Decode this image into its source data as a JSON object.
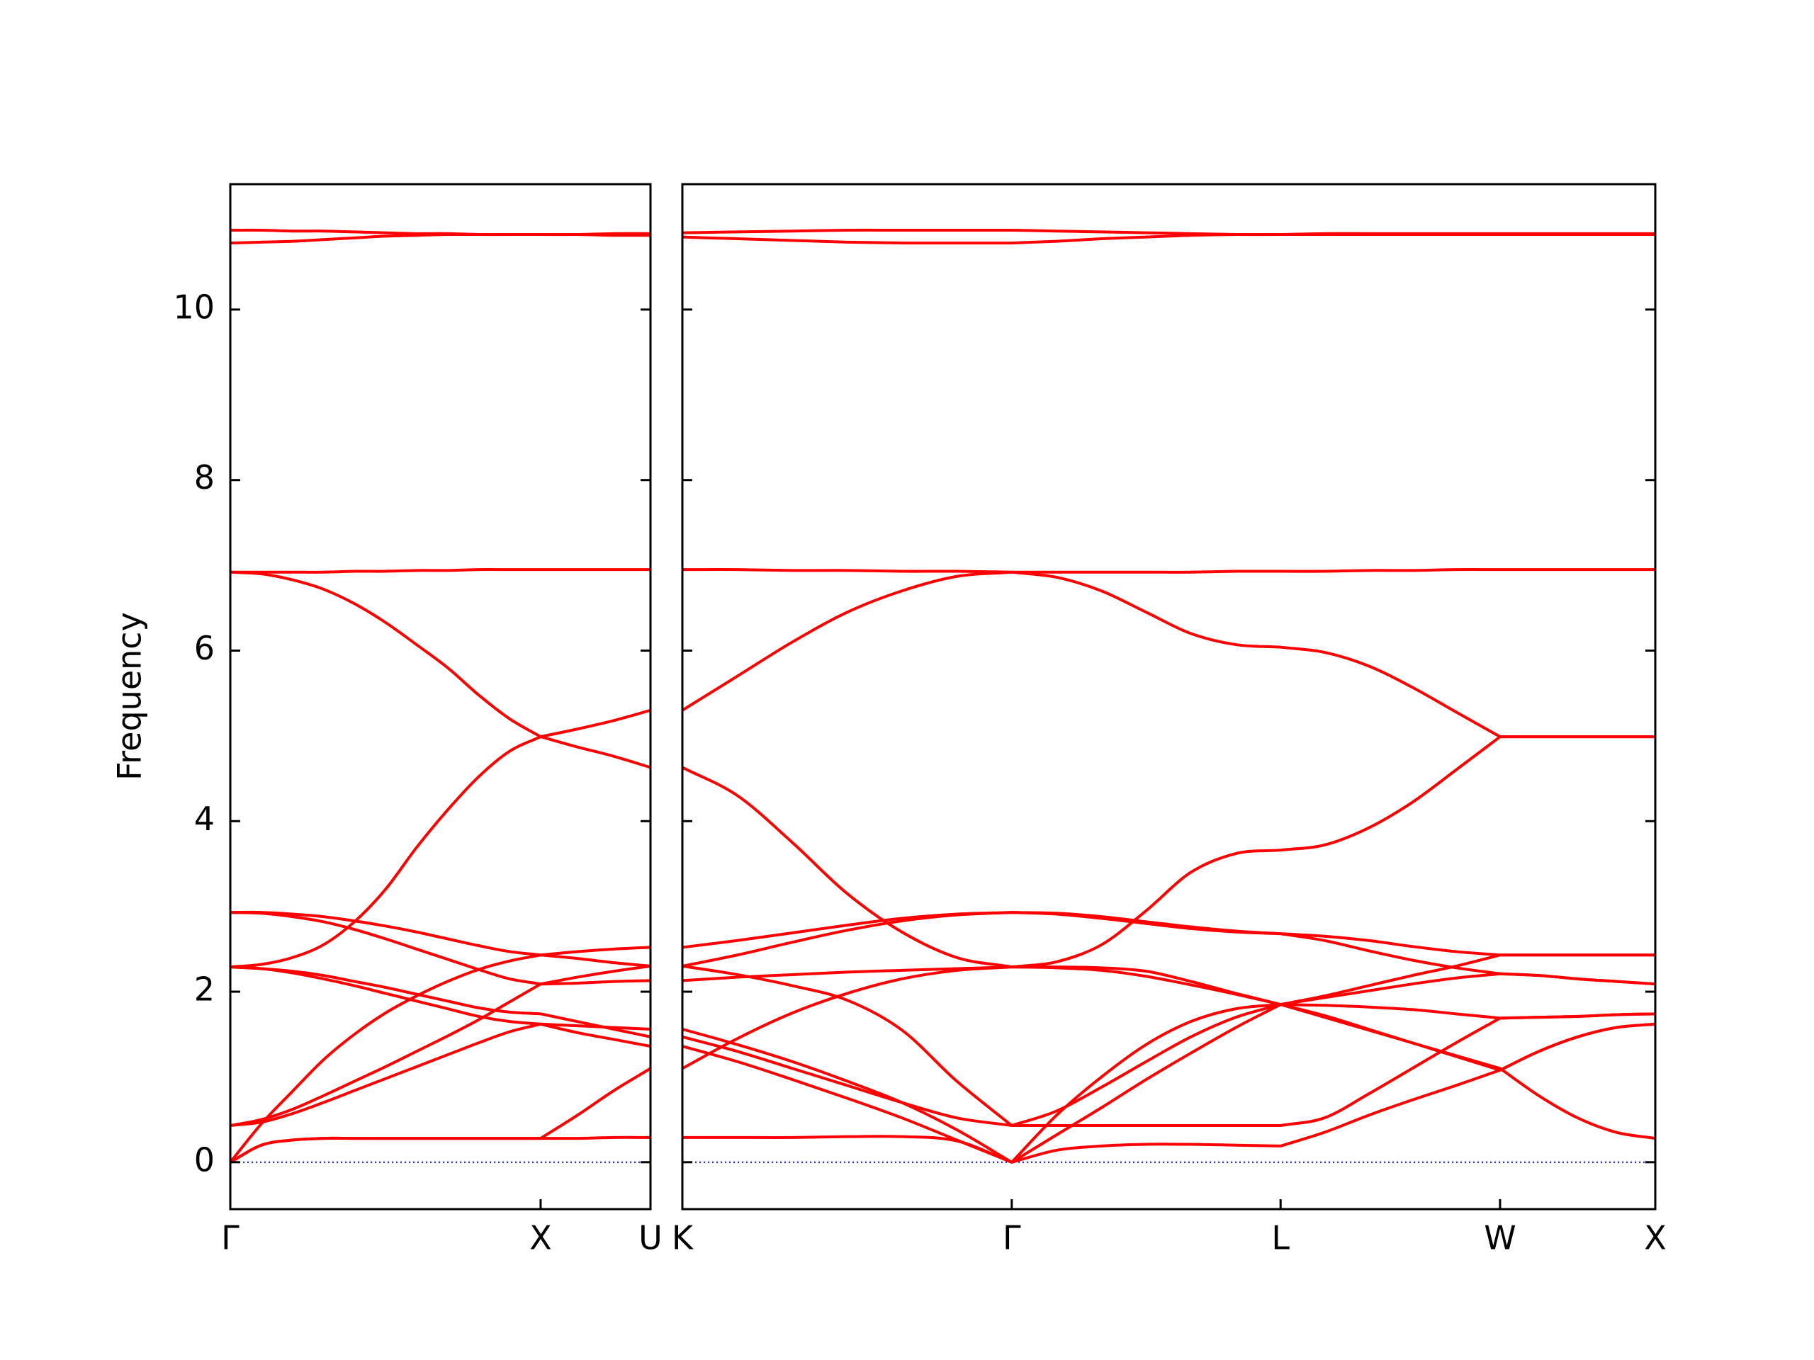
{
  "chart_data": [
    {
      "type": "line",
      "ylabel": "Frequency",
      "color": "#ff0000",
      "xlim": [
        0,
        1.354
      ],
      "ylim": [
        -0.55,
        11.47
      ],
      "xticks": [
        {
          "value": 0,
          "label": "Γ"
        },
        {
          "value": 1,
          "label": "X"
        },
        {
          "value": 1.354,
          "label": "U"
        }
      ],
      "yticks": [
        0,
        2,
        4,
        6,
        8,
        10
      ],
      "hline": {
        "value": 0,
        "color": "#0000cc",
        "style": "dotted"
      },
      "x": [
        0,
        0.1,
        0.2,
        0.3,
        0.4,
        0.5,
        0.6,
        0.7,
        0.8,
        0.9,
        1,
        1.118,
        1.236,
        1.354
      ],
      "series": [
        {
          "values": [
            0,
            0.2,
            0.26,
            0.28,
            0.28,
            0.28,
            0.28,
            0.28,
            0.28,
            0.28,
            0.28,
            0.28,
            0.29,
            0.29
          ]
        },
        {
          "values": [
            0,
            0.2,
            0.26,
            0.28,
            0.28,
            0.28,
            0.28,
            0.28,
            0.28,
            0.28,
            0.28,
            0.55,
            0.84,
            1.1
          ]
        },
        {
          "values": [
            0,
            0.45,
            0.83,
            1.2,
            1.5,
            1.75,
            1.95,
            2.12,
            2.26,
            2.36,
            2.43,
            2.47,
            2.5,
            2.52
          ]
        },
        {
          "values": [
            0.43,
            0.5,
            0.62,
            0.78,
            0.95,
            1.12,
            1.3,
            1.48,
            1.67,
            1.88,
            2.09,
            2.17,
            2.24,
            2.3
          ]
        },
        {
          "values": [
            0.43,
            0.47,
            0.57,
            0.7,
            0.84,
            0.98,
            1.12,
            1.26,
            1.4,
            1.53,
            1.62,
            1.6,
            1.58,
            1.56
          ]
        },
        {
          "values": [
            2.29,
            2.27,
            2.22,
            2.15,
            2.07,
            1.98,
            1.89,
            1.8,
            1.71,
            1.65,
            1.62,
            1.52,
            1.44,
            1.36
          ]
        },
        {
          "values": [
            2.29,
            2.27,
            2.24,
            2.19,
            2.12,
            2.05,
            1.97,
            1.89,
            1.81,
            1.76,
            1.74,
            1.65,
            1.56,
            1.47
          ]
        },
        {
          "values": [
            2.29,
            2.32,
            2.4,
            2.55,
            2.82,
            3.2,
            3.69,
            4.13,
            4.52,
            4.82,
            4.99,
            5.08,
            5.18,
            5.3
          ]
        },
        {
          "values": [
            2.93,
            2.93,
            2.91,
            2.88,
            2.83,
            2.77,
            2.7,
            2.62,
            2.54,
            2.47,
            2.43,
            2.39,
            2.34,
            2.3
          ]
        },
        {
          "values": [
            2.93,
            2.92,
            2.88,
            2.82,
            2.73,
            2.62,
            2.5,
            2.38,
            2.26,
            2.15,
            2.09,
            2.1,
            2.12,
            2.13
          ]
        },
        {
          "values": [
            6.92,
            6.92,
            6.92,
            6.92,
            6.93,
            6.93,
            6.94,
            6.94,
            6.95,
            6.95,
            6.95,
            6.95,
            6.95,
            6.95
          ]
        },
        {
          "values": [
            6.92,
            6.9,
            6.83,
            6.72,
            6.55,
            6.33,
            6.07,
            5.8,
            5.48,
            5.2,
            4.99,
            4.87,
            4.76,
            4.63
          ]
        },
        {
          "values": [
            10.78,
            10.79,
            10.8,
            10.82,
            10.84,
            10.86,
            10.87,
            10.88,
            10.88,
            10.88,
            10.88,
            10.88,
            10.87,
            10.87
          ]
        },
        {
          "values": [
            10.93,
            10.93,
            10.92,
            10.92,
            10.91,
            10.9,
            10.89,
            10.89,
            10.88,
            10.88,
            10.88,
            10.88,
            10.89,
            10.89
          ]
        }
      ]
    },
    {
      "type": "line",
      "color": "#ff0000",
      "xlim": [
        0,
        3.134
      ],
      "ylim": [
        -0.55,
        11.47
      ],
      "xticks": [
        {
          "value": 0,
          "label": "K"
        },
        {
          "value": 1.061,
          "label": "Γ"
        },
        {
          "value": 1.927,
          "label": "L"
        },
        {
          "value": 2.634,
          "label": "W"
        },
        {
          "value": 3.134,
          "label": "X"
        }
      ],
      "hline": {
        "value": 0,
        "color": "#0000cc",
        "style": "dotted"
      },
      "x": [
        0,
        0.177,
        0.354,
        0.531,
        0.707,
        0.884,
        1.061,
        1.205,
        1.35,
        1.494,
        1.638,
        1.783,
        1.927,
        2.068,
        2.21,
        2.351,
        2.492,
        2.634,
        2.759,
        2.884,
        3.009,
        3.134
      ],
      "series": [
        {
          "values": [
            0.29,
            0.29,
            0.29,
            0.3,
            0.3,
            0.25,
            0,
            0.14,
            0.19,
            0.21,
            0.21,
            0.2,
            0.19,
            0.35,
            0.55,
            0.73,
            0.9,
            1.08,
            1.3,
            1.47,
            1.58,
            1.62
          ]
        },
        {
          "values": [
            1.1,
            1.45,
            1.75,
            1.98,
            2.15,
            2.25,
            2.29,
            2.28,
            2.25,
            2.18,
            2.08,
            1.97,
            1.85,
            1.93,
            2.01,
            2.09,
            2.16,
            2.21,
            2.19,
            2.15,
            2.12,
            2.09
          ]
        },
        {
          "values": [
            2.52,
            2.6,
            2.69,
            2.78,
            2.86,
            2.91,
            2.93,
            2.92,
            2.88,
            2.82,
            2.76,
            2.71,
            2.68,
            2.65,
            2.6,
            2.53,
            2.47,
            2.43,
            2.43,
            2.43,
            2.43,
            2.43
          ]
        },
        {
          "values": [
            2.3,
            2.43,
            2.58,
            2.72,
            2.83,
            2.9,
            2.93,
            2.91,
            2.86,
            2.8,
            2.74,
            2.7,
            2.68,
            2.6,
            2.48,
            2.37,
            2.28,
            2.21,
            2.19,
            2.15,
            2.12,
            2.09
          ]
        },
        {
          "values": [
            1.56,
            1.38,
            1.18,
            0.95,
            0.7,
            0.38,
            0,
            0.55,
            1.0,
            1.38,
            1.65,
            1.8,
            1.85,
            1.72,
            1.56,
            1.4,
            1.24,
            1.08,
            1.3,
            1.47,
            1.58,
            1.62
          ]
        },
        {
          "values": [
            1.36,
            1.18,
            0.97,
            0.75,
            0.52,
            0.26,
            0,
            0.32,
            0.64,
            0.97,
            1.28,
            1.58,
            1.85,
            1.7,
            1.55,
            1.4,
            1.25,
            1.1,
            0.78,
            0.52,
            0.35,
            0.28
          ]
        },
        {
          "values": [
            1.47,
            1.3,
            1.1,
            0.9,
            0.7,
            0.52,
            0.43,
            0.43,
            0.43,
            0.43,
            0.43,
            0.43,
            0.43,
            0.52,
            0.8,
            1.1,
            1.4,
            1.69,
            1.7,
            1.71,
            1.73,
            1.74
          ]
        },
        {
          "values": [
            2.3,
            2.2,
            2.07,
            1.9,
            1.55,
            0.95,
            0.43,
            0.6,
            0.88,
            1.18,
            1.47,
            1.7,
            1.85,
            1.84,
            1.82,
            1.79,
            1.74,
            1.69,
            1.7,
            1.71,
            1.73,
            1.74
          ]
        },
        {
          "values": [
            2.13,
            2.17,
            2.2,
            2.23,
            2.25,
            2.27,
            2.29,
            2.29,
            2.28,
            2.24,
            2.12,
            1.98,
            1.85,
            1.95,
            2.07,
            2.19,
            2.3,
            2.43,
            2.43,
            2.43,
            2.43,
            2.43
          ]
        },
        {
          "values": [
            4.63,
            4.3,
            3.75,
            3.15,
            2.7,
            2.4,
            2.29,
            2.35,
            2.55,
            2.95,
            3.4,
            3.62,
            3.66,
            3.72,
            3.92,
            4.22,
            4.6,
            4.99,
            4.99,
            4.99,
            4.99,
            4.99
          ]
        },
        {
          "values": [
            5.3,
            5.7,
            6.1,
            6.45,
            6.7,
            6.87,
            6.92,
            6.86,
            6.7,
            6.45,
            6.2,
            6.07,
            6.04,
            5.98,
            5.82,
            5.57,
            5.28,
            4.99,
            4.99,
            4.99,
            4.99,
            4.99
          ]
        },
        {
          "values": [
            6.95,
            6.95,
            6.94,
            6.94,
            6.93,
            6.93,
            6.92,
            6.92,
            6.92,
            6.92,
            6.92,
            6.93,
            6.93,
            6.93,
            6.94,
            6.94,
            6.95,
            6.95,
            6.95,
            6.95,
            6.95,
            6.95
          ]
        },
        {
          "values": [
            10.85,
            10.83,
            10.81,
            10.79,
            10.78,
            10.78,
            10.78,
            10.8,
            10.83,
            10.85,
            10.87,
            10.88,
            10.88,
            10.88,
            10.88,
            10.88,
            10.88,
            10.88,
            10.88,
            10.88,
            10.88,
            10.88
          ]
        },
        {
          "values": [
            10.9,
            10.91,
            10.92,
            10.93,
            10.93,
            10.93,
            10.93,
            10.92,
            10.91,
            10.9,
            10.89,
            10.88,
            10.88,
            10.89,
            10.89,
            10.89,
            10.89,
            10.89,
            10.89,
            10.89,
            10.89,
            10.89
          ]
        }
      ]
    }
  ]
}
